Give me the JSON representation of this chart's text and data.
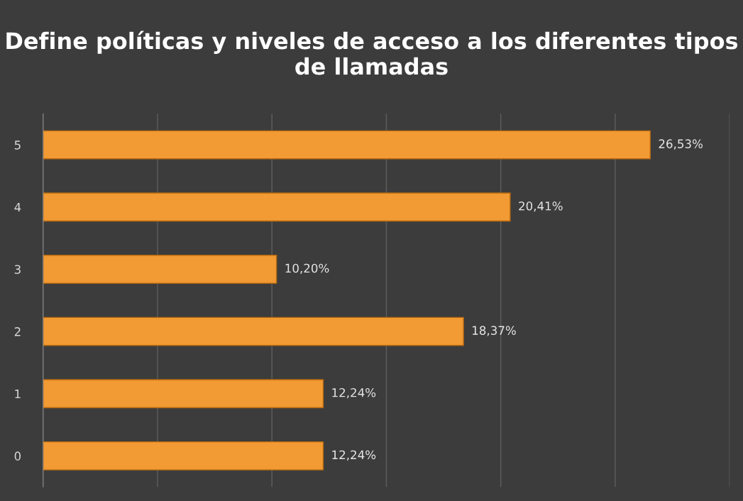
{
  "chart_data": {
    "type": "bar",
    "orientation": "horizontal",
    "title": "Define políticas y niveles de acceso a los diferentes tipos de llamadas",
    "categories": [
      "5",
      "4",
      "3",
      "2",
      "1",
      "0"
    ],
    "values": [
      26.53,
      20.41,
      10.2,
      18.37,
      12.24,
      12.24
    ],
    "value_labels": [
      "26,53%",
      "20,41%",
      "10,20%",
      "18,37%",
      "12,24%",
      "12,24%"
    ],
    "color": "#f29a33",
    "xlim": [
      0,
      30
    ],
    "xticks": [
      {
        "value": 0,
        "label": null
      },
      {
        "value": 5,
        "label": null
      },
      {
        "value": 10,
        "label": null
      },
      {
        "value": 15,
        "label": null
      },
      {
        "value": 20,
        "label": null
      },
      {
        "value": 25,
        "label": null
      },
      {
        "value": 30,
        "label": null
      }
    ],
    "tick_labels": "y",
    "grid": "x",
    "legend": false
  }
}
